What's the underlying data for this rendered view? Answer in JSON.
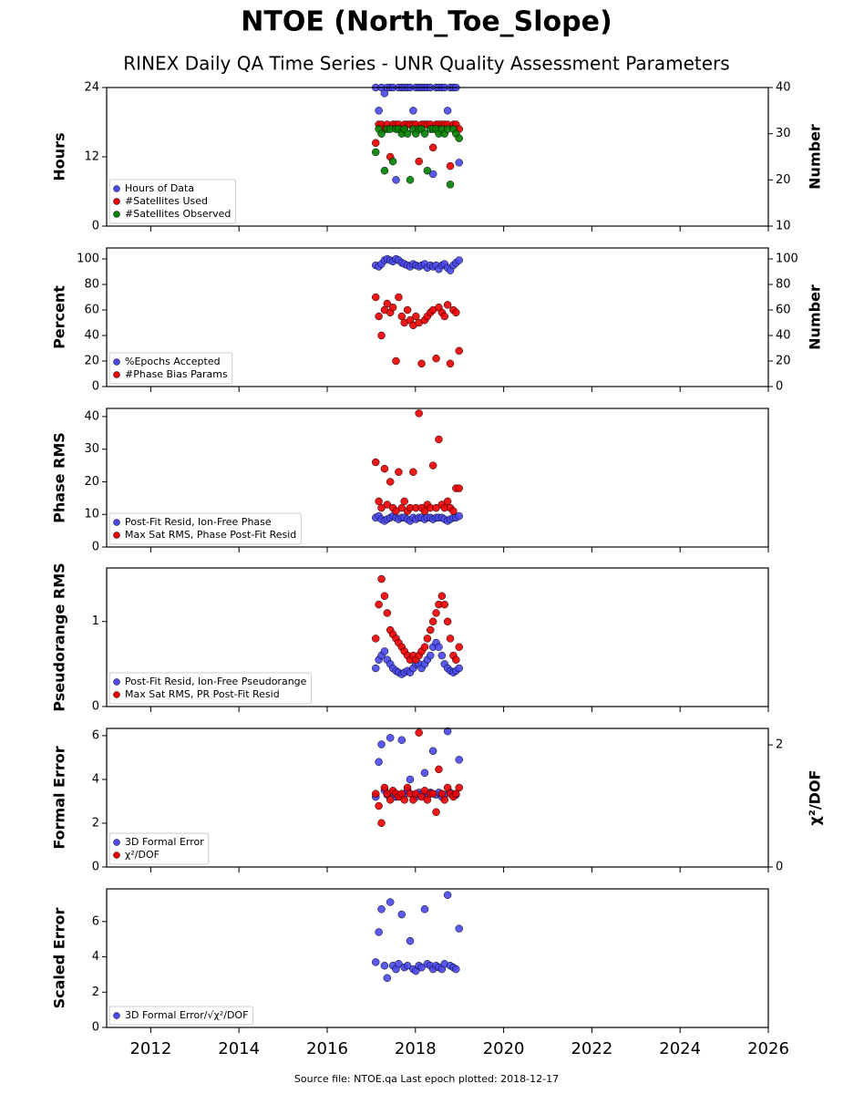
{
  "title": "NTOE (North_Toe_Slope)",
  "subtitle": "RINEX Daily QA Time Series - UNR Quality Assessment Parameters",
  "footer": "Source file: NTOE.qa Last epoch plotted: 2018-12-17",
  "chart_data": [
    {
      "type": "scatter",
      "ylabel": "Hours",
      "y2label": "Number",
      "legend": "lower left",
      "show_xtick_labels": false,
      "x": [
        2017.1,
        2017.17,
        2017.23,
        2017.3,
        2017.36,
        2017.43,
        2017.49,
        2017.56,
        2017.62,
        2017.69,
        2017.75,
        2017.82,
        2017.88,
        2017.95,
        2018.01,
        2018.08,
        2018.14,
        2018.21,
        2018.27,
        2018.34,
        2018.4,
        2018.47,
        2018.53,
        2018.6,
        2018.66,
        2018.73,
        2018.79,
        2018.86,
        2018.92,
        2018.99
      ],
      "xlim": [
        2011,
        2026
      ],
      "xticks": [
        2012,
        2014,
        2016,
        2018,
        2020,
        2022,
        2024,
        2026
      ],
      "ylim": [
        0,
        24
      ],
      "yticks": [
        0,
        12,
        24
      ],
      "y2lim": [
        10,
        40
      ],
      "y2ticks": [
        10,
        20,
        30,
        40
      ],
      "series": [
        {
          "name": "Hours of Data",
          "color": "#4848ee",
          "values": [
            24,
            20,
            24,
            23,
            24,
            24,
            24,
            8,
            24,
            24,
            24,
            24,
            24,
            20,
            24,
            24,
            24,
            24,
            24,
            24,
            9,
            24,
            24,
            24,
            24,
            20,
            24,
            24,
            24,
            11
          ]
        },
        {
          "name": "#Satellites Used",
          "color": "#ee0000",
          "axis": "y2",
          "values": [
            28,
            32,
            32,
            31,
            32,
            25,
            32,
            32,
            32,
            31,
            32,
            32,
            32,
            32,
            32,
            24,
            32,
            32,
            32,
            32,
            27,
            32,
            32,
            32,
            32,
            32,
            23,
            32,
            32,
            31
          ]
        },
        {
          "name": "#Satellites Observed",
          "color": "#008000",
          "axis": "y2",
          "values": [
            26,
            31,
            30,
            22,
            31,
            31,
            24,
            31,
            31,
            30,
            31,
            30,
            20,
            31,
            30,
            31,
            31,
            30,
            22,
            31,
            31,
            31,
            30,
            31,
            30,
            31,
            19,
            31,
            30,
            29
          ]
        }
      ]
    },
    {
      "type": "scatter",
      "ylabel": "Percent",
      "y2label": "Number",
      "legend": "lower left",
      "show_xtick_labels": false,
      "x": [
        2017.1,
        2017.17,
        2017.23,
        2017.3,
        2017.36,
        2017.43,
        2017.49,
        2017.56,
        2017.62,
        2017.69,
        2017.75,
        2017.82,
        2017.88,
        2017.95,
        2018.01,
        2018.08,
        2018.14,
        2018.21,
        2018.27,
        2018.34,
        2018.4,
        2018.47,
        2018.53,
        2018.6,
        2018.66,
        2018.73,
        2018.79,
        2018.86,
        2018.92,
        2018.99
      ],
      "xlim": [
        2011,
        2026
      ],
      "xticks": [
        2012,
        2014,
        2016,
        2018,
        2020,
        2022,
        2024,
        2026
      ],
      "ylim": [
        0,
        108.6
      ],
      "yticks": [
        0,
        20,
        40,
        60,
        80,
        100
      ],
      "y2lim": [
        0,
        108.6
      ],
      "y2ticks": [
        0,
        20,
        40,
        60,
        80,
        100
      ],
      "series": [
        {
          "name": "%Epochs Accepted",
          "color": "#4848ee",
          "values": [
            95,
            94,
            96,
            99,
            100,
            99,
            98,
            100,
            99,
            97,
            96,
            95,
            94,
            96,
            95,
            94,
            95,
            96,
            93,
            95,
            94,
            95,
            92,
            95,
            96,
            93,
            91,
            95,
            97,
            99
          ]
        },
        {
          "name": "#Phase Bias Params",
          "color": "#ee0000",
          "axis": "y2",
          "values": [
            70,
            55,
            40,
            60,
            65,
            58,
            62,
            20,
            70,
            55,
            50,
            60,
            52,
            48,
            55,
            50,
            18,
            52,
            55,
            58,
            60,
            22,
            62,
            58,
            55,
            64,
            18,
            60,
            58,
            28
          ]
        }
      ]
    },
    {
      "type": "scatter",
      "ylabel": "Phase RMS",
      "legend": "lower left",
      "show_xtick_labels": false,
      "x": [
        2017.1,
        2017.17,
        2017.23,
        2017.3,
        2017.36,
        2017.43,
        2017.49,
        2017.56,
        2017.62,
        2017.69,
        2017.75,
        2017.82,
        2017.88,
        2017.95,
        2018.01,
        2018.08,
        2018.14,
        2018.21,
        2018.27,
        2018.34,
        2018.4,
        2018.47,
        2018.53,
        2018.6,
        2018.66,
        2018.73,
        2018.79,
        2018.86,
        2018.92,
        2018.99
      ],
      "xlim": [
        2011,
        2026
      ],
      "xticks": [
        2012,
        2014,
        2016,
        2018,
        2020,
        2022,
        2024,
        2026
      ],
      "ylim": [
        0,
        42.5
      ],
      "yticks": [
        0,
        10,
        20,
        30,
        40
      ],
      "series": [
        {
          "name": "Post-Fit Resid, Ion-Free Phase",
          "color": "#4848ee",
          "values": [
            9,
            9.5,
            8.5,
            8,
            8.5,
            9,
            9.5,
            9,
            8.5,
            9,
            9,
            8.5,
            8,
            9,
            8.5,
            9,
            9,
            8.5,
            9,
            9,
            8.5,
            9,
            9,
            9,
            8.5,
            8,
            8.5,
            9,
            9,
            9.5
          ]
        },
        {
          "name": "Max Sat RMS, Phase Post-Fit Resid",
          "color": "#ee0000",
          "values": [
            26,
            14,
            12,
            24,
            13,
            20,
            12,
            11,
            23,
            12,
            14,
            11,
            12,
            23,
            12,
            41,
            12,
            11,
            13,
            12,
            25,
            12,
            33,
            13,
            12,
            14,
            12,
            11,
            18,
            18
          ]
        }
      ]
    },
    {
      "type": "scatter",
      "ylabel": "Pseudorange RMS",
      "legend": "lower left",
      "show_xtick_labels": false,
      "x": [
        2017.1,
        2017.17,
        2017.23,
        2017.3,
        2017.36,
        2017.43,
        2017.49,
        2017.56,
        2017.62,
        2017.69,
        2017.75,
        2017.82,
        2017.88,
        2017.95,
        2018.01,
        2018.08,
        2018.14,
        2018.21,
        2018.27,
        2018.34,
        2018.4,
        2018.47,
        2018.53,
        2018.6,
        2018.66,
        2018.73,
        2018.79,
        2018.86,
        2018.92,
        2018.99
      ],
      "xlim": [
        2011,
        2026
      ],
      "xticks": [
        2012,
        2014,
        2016,
        2018,
        2020,
        2022,
        2024,
        2026
      ],
      "ylim": [
        0,
        1.63
      ],
      "yticks": [
        0,
        1
      ],
      "series": [
        {
          "name": "Post-Fit Resid, Ion-Free Pseudorange",
          "color": "#4848ee",
          "values": [
            0.45,
            0.55,
            0.6,
            0.65,
            0.55,
            0.5,
            0.45,
            0.42,
            0.4,
            0.38,
            0.4,
            0.42,
            0.4,
            0.45,
            0.5,
            0.5,
            0.45,
            0.5,
            0.55,
            0.6,
            0.7,
            0.75,
            0.7,
            0.6,
            0.5,
            0.45,
            0.42,
            0.4,
            0.42,
            0.45
          ]
        },
        {
          "name": "Max Sat RMS, PR Post-Fit Resid",
          "color": "#ee0000",
          "values": [
            0.8,
            1.2,
            1.5,
            1.3,
            1.1,
            0.9,
            0.85,
            0.8,
            0.75,
            0.7,
            0.65,
            0.6,
            0.55,
            0.6,
            0.55,
            0.6,
            0.65,
            0.7,
            0.8,
            0.9,
            1.0,
            1.1,
            1.2,
            1.3,
            1.2,
            1.0,
            0.8,
            0.6,
            0.55,
            0.7
          ]
        }
      ]
    },
    {
      "type": "scatter",
      "ylabel": "Formal Error",
      "y2label": "χ²/DOF",
      "legend": "lower left",
      "show_xtick_labels": false,
      "x": [
        2017.1,
        2017.17,
        2017.23,
        2017.3,
        2017.36,
        2017.43,
        2017.49,
        2017.56,
        2017.62,
        2017.69,
        2017.75,
        2017.82,
        2017.88,
        2017.95,
        2018.01,
        2018.08,
        2018.14,
        2018.21,
        2018.27,
        2018.34,
        2018.4,
        2018.47,
        2018.53,
        2018.6,
        2018.66,
        2018.73,
        2018.79,
        2018.86,
        2018.92,
        2018.99
      ],
      "xlim": [
        2011,
        2026
      ],
      "xticks": [
        2012,
        2014,
        2016,
        2018,
        2020,
        2022,
        2024,
        2026
      ],
      "ylim": [
        0,
        6.33
      ],
      "yticks": [
        0,
        2,
        4,
        6
      ],
      "y2lim": [
        0,
        2.27
      ],
      "y2ticks": [
        0,
        2
      ],
      "series": [
        {
          "name": "3D Formal Error",
          "color": "#4848ee",
          "values": [
            3.2,
            4.8,
            5.6,
            3.5,
            3.3,
            5.9,
            3.4,
            3.2,
            3.3,
            5.8,
            3.3,
            3.5,
            4.0,
            3.3,
            3.2,
            3.4,
            3.3,
            4.3,
            3.3,
            3.4,
            5.3,
            3.3,
            3.4,
            3.2,
            3.3,
            6.2,
            3.4,
            3.3,
            3.3,
            4.9
          ]
        },
        {
          "name": "χ²/DOF",
          "color": "#ee0000",
          "axis": "y2",
          "values": [
            1.2,
            1.0,
            0.72,
            1.3,
            1.2,
            1.1,
            1.25,
            1.2,
            1.15,
            1.2,
            1.1,
            1.3,
            1.2,
            1.1,
            1.2,
            2.2,
            1.15,
            1.25,
            1.1,
            1.2,
            1.2,
            0.9,
            1.6,
            1.2,
            1.1,
            1.3,
            1.2,
            1.15,
            1.2,
            1.3
          ]
        }
      ]
    },
    {
      "type": "scatter",
      "ylabel": "Scaled Error",
      "legend": "lower left",
      "show_xtick_labels": true,
      "x": [
        2017.1,
        2017.17,
        2017.23,
        2017.3,
        2017.36,
        2017.43,
        2017.49,
        2017.56,
        2017.62,
        2017.69,
        2017.75,
        2017.82,
        2017.88,
        2017.95,
        2018.01,
        2018.08,
        2018.14,
        2018.21,
        2018.27,
        2018.34,
        2018.4,
        2018.47,
        2018.53,
        2018.6,
        2018.66,
        2018.73,
        2018.79,
        2018.86,
        2018.92,
        2018.99
      ],
      "xlim": [
        2011,
        2026
      ],
      "xticks": [
        2012,
        2014,
        2016,
        2018,
        2020,
        2022,
        2024,
        2026
      ],
      "ylim": [
        0,
        7.85
      ],
      "yticks": [
        0,
        2,
        4,
        6
      ],
      "series": [
        {
          "name": "3D Formal Error/√χ²/DOF",
          "color": "#4848ee",
          "values": [
            3.7,
            5.4,
            6.7,
            3.5,
            2.8,
            7.1,
            3.5,
            3.3,
            3.6,
            6.4,
            3.4,
            3.5,
            4.9,
            3.3,
            3.2,
            3.5,
            3.4,
            6.7,
            3.6,
            3.5,
            3.3,
            3.5,
            3.4,
            3.3,
            3.6,
            7.5,
            3.5,
            3.4,
            3.3,
            5.6
          ]
        }
      ]
    }
  ]
}
